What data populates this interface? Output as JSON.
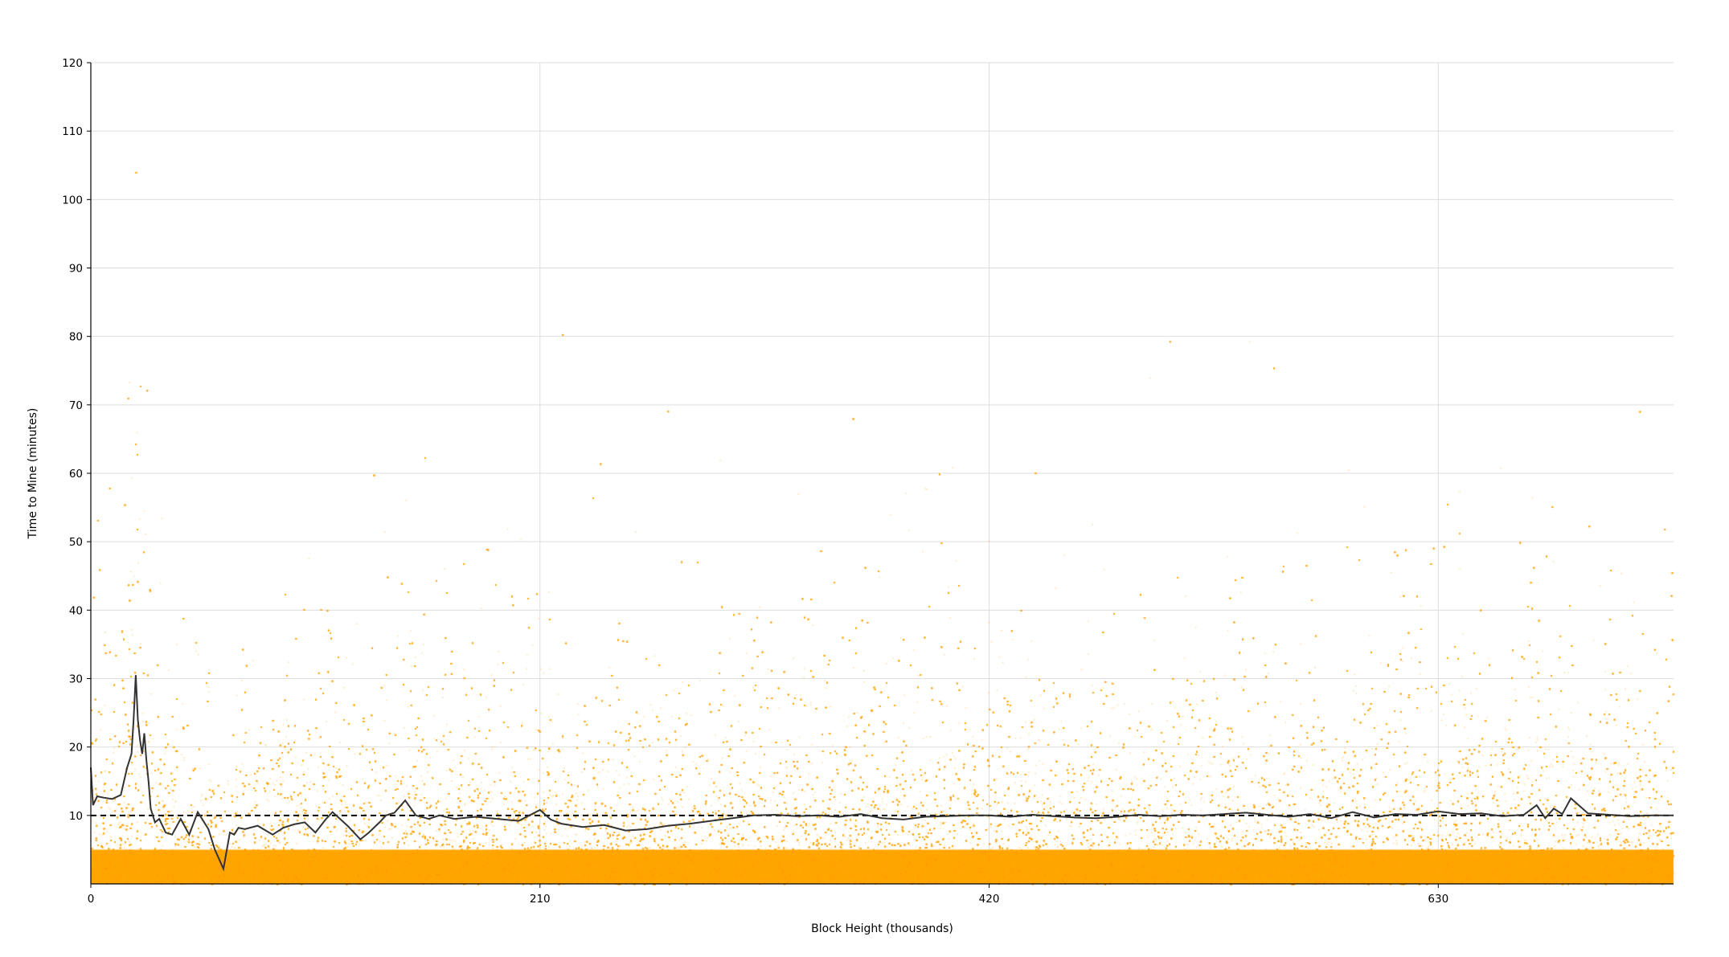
{
  "chart_data": {
    "type": "scatter",
    "title": "",
    "xlabel": "Block Height (thousands)",
    "ylabel": "Time to Mine (minutes)",
    "xlim": [
      0,
      740
    ],
    "ylim": [
      0,
      120
    ],
    "x_ticks": [
      0,
      210,
      420,
      630
    ],
    "y_ticks": [
      10,
      20,
      30,
      40,
      50,
      60,
      70,
      80,
      90,
      100,
      110,
      120
    ],
    "grid": true,
    "legend": "none",
    "reference_line": {
      "y": 10,
      "style": "dashed",
      "color": "#000000"
    },
    "colors": {
      "points": "#FFA500",
      "moving_average": "#333333",
      "grid": "#dddddd"
    },
    "series": [
      {
        "kind": "moving_average",
        "x": [
          0,
          1,
          3,
          6,
          10,
          14,
          17,
          19,
          20,
          21,
          22,
          23,
          24,
          25,
          26,
          27,
          28,
          30,
          32,
          35,
          38,
          42,
          46,
          50,
          55,
          58,
          62,
          65,
          67,
          69,
          72,
          78,
          85,
          90,
          95,
          100,
          105,
          110,
          113,
          120,
          126,
          130,
          135,
          138,
          142,
          147,
          152,
          158,
          163,
          170,
          180,
          190,
          200,
          210,
          215,
          220,
          230,
          240,
          250,
          260,
          270,
          280,
          290,
          300,
          310,
          320,
          330,
          340,
          350,
          360,
          370,
          380,
          390,
          400,
          410,
          420,
          430,
          440,
          450,
          460,
          470,
          480,
          490,
          500,
          510,
          520,
          530,
          540,
          550,
          560,
          570,
          580,
          590,
          600,
          610,
          620,
          630,
          640,
          650,
          660,
          670,
          676,
          680,
          684,
          688,
          692,
          700,
          710,
          720,
          730,
          740
        ],
        "y": [
          17,
          11.5,
          12.8,
          12.6,
          12.4,
          13,
          17,
          19,
          24,
          30.5,
          24,
          21,
          19,
          22,
          18,
          15,
          11,
          9,
          9.5,
          7.5,
          7.2,
          9.5,
          7.2,
          10.5,
          8,
          5,
          2.2,
          7.5,
          7.2,
          8.2,
          8,
          8.5,
          7.2,
          8.2,
          8.7,
          9,
          7.5,
          9.5,
          10.5,
          8.5,
          6.5,
          7.5,
          9,
          10,
          10.4,
          12.2,
          10,
          9.5,
          10,
          9.5,
          9.8,
          9.5,
          9.2,
          10.8,
          9.4,
          8.8,
          8.3,
          8.6,
          7.8,
          8,
          8.5,
          8.8,
          9.2,
          9.6,
          10,
          10.1,
          9.9,
          10,
          9.8,
          10.2,
          9.6,
          9.4,
          9.8,
          9.9,
          10,
          10,
          9.8,
          10.1,
          9.9,
          9.7,
          9.6,
          9.8,
          10.1,
          9.9,
          10.1,
          10,
          10.2,
          10.4,
          10.1,
          9.8,
          10.2,
          9.6,
          10.5,
          9.7,
          10.2,
          10.1,
          10.6,
          10.2,
          10.3,
          9.9,
          10.1,
          11.5,
          9.6,
          11,
          10.2,
          12.5,
          10.3,
          10.1,
          9.9,
          10,
          10
        ]
      }
    ]
  }
}
